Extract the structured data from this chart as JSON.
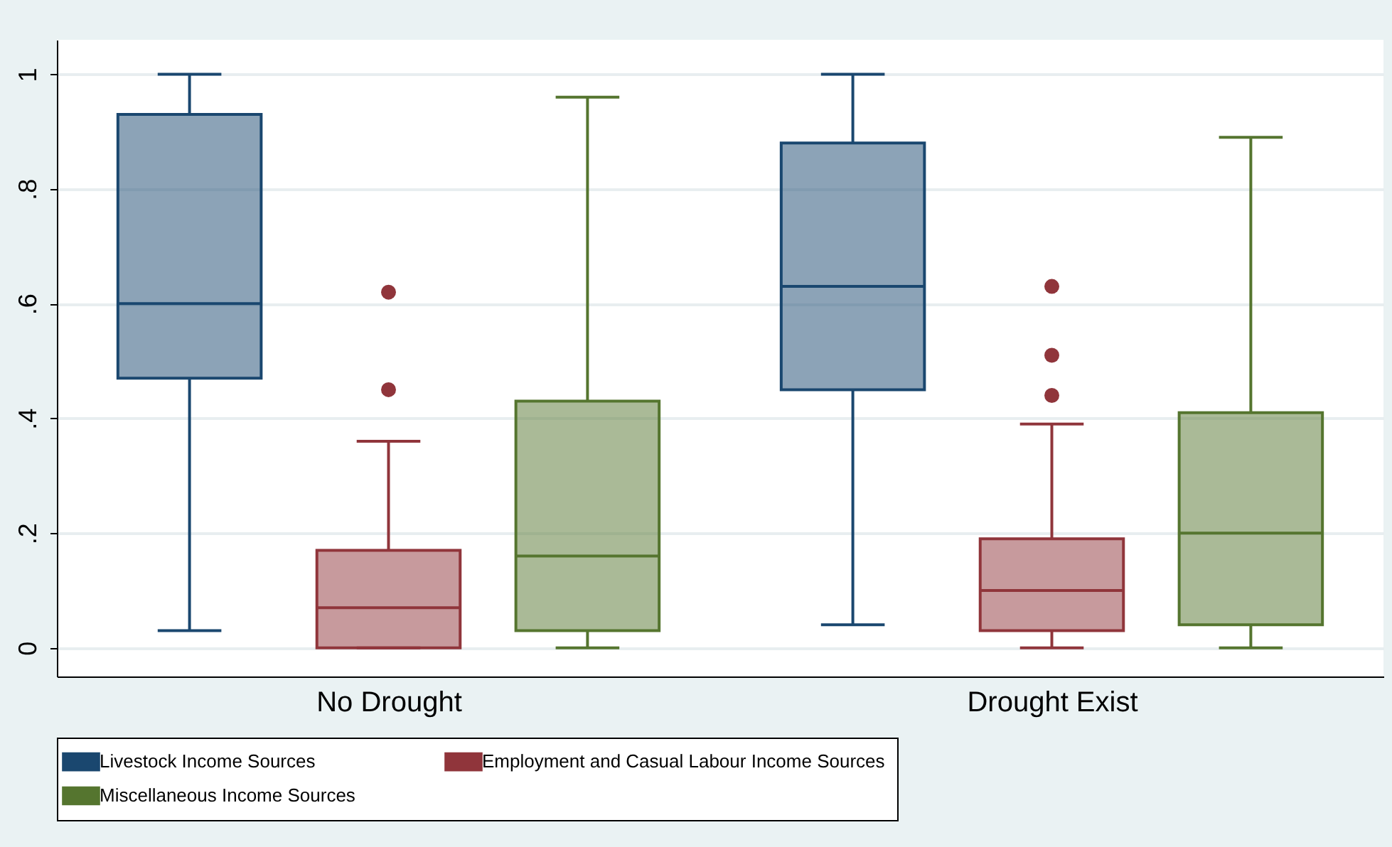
{
  "chart_data": {
    "type": "box",
    "categories": [
      "No Drought",
      "Drought Exist"
    ],
    "series": [
      {
        "name": "Livestock Income Sources",
        "color": "#1a476f",
        "boxes": [
          {
            "low": 0.03,
            "q1": 0.47,
            "median": 0.6,
            "q3": 0.93,
            "high": 1.0
          },
          {
            "low": 0.04,
            "q1": 0.45,
            "median": 0.63,
            "q3": 0.88,
            "high": 1.0
          }
        ]
      },
      {
        "name": "Employment and Casual Labour Income Sources",
        "color": "#90353b",
        "boxes": [
          {
            "low": 0,
            "q1": 0,
            "median": 0.07,
            "q3": 0.17,
            "high": 0.36,
            "outliers": [
              0.62,
              0.45
            ]
          },
          {
            "low": 0,
            "q1": 0.03,
            "median": 0.1,
            "q3": 0.19,
            "high": 0.39,
            "outliers": [
              0.63,
              0.51,
              0.44
            ]
          }
        ]
      },
      {
        "name": "Miscellaneous Income Sources",
        "color": "#55752f",
        "boxes": [
          {
            "low": 0,
            "q1": 0.03,
            "median": 0.16,
            "q3": 0.43,
            "high": 0.96
          },
          {
            "low": 0,
            "q1": 0.04,
            "median": 0.2,
            "q3": 0.41,
            "high": 0.89
          }
        ]
      }
    ],
    "ylim": [
      -0.05,
      1.06
    ],
    "yticks": [
      0,
      {
        "value": 0.2,
        "label": ".2"
      },
      {
        "value": 0.4,
        "label": ".4"
      },
      {
        "value": 0.6,
        "label": ".6"
      },
      {
        "value": 0.8,
        "label": ".8"
      },
      1
    ],
    "grid": "y",
    "legend": "bottom"
  }
}
